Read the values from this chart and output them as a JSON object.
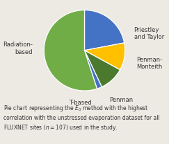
{
  "labels": [
    "Priestley\nand Taylor",
    "Penman-\nMonteith",
    "Penman",
    "T-based",
    "Radiation-\nbased"
  ],
  "sizes": [
    22,
    11,
    10,
    2,
    55
  ],
  "colors": [
    "#4472C4",
    "#FFC000",
    "#4B7A2E",
    "#4472C4",
    "#70AD47"
  ],
  "startangle": 90,
  "background_color": "#ede9e3",
  "label_fontsize": 6.0,
  "caption_fontsize": 5.5,
  "label_positions": [
    [
      1.22,
      0.42,
      "left",
      "center"
    ],
    [
      1.28,
      -0.32,
      "left",
      "center"
    ],
    [
      0.62,
      -1.15,
      "left",
      "top"
    ],
    [
      -0.1,
      -1.22,
      "center",
      "top"
    ],
    [
      -1.28,
      0.05,
      "right",
      "center"
    ]
  ]
}
